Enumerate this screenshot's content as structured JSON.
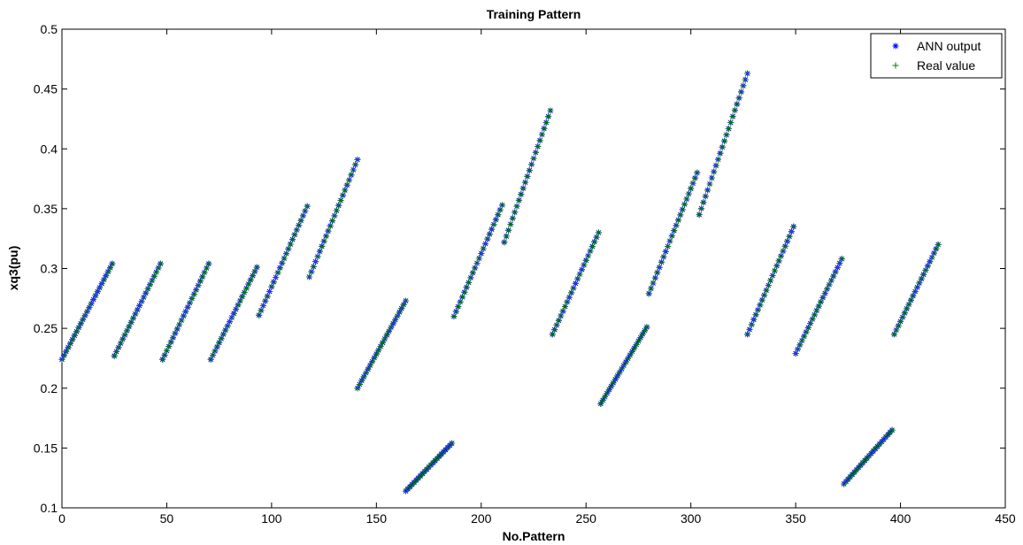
{
  "chart_data": {
    "type": "scatter",
    "title": "Training Pattern",
    "xlabel": "No.Pattern",
    "ylabel": "xq3(pu)",
    "xlim": [
      0,
      450
    ],
    "ylim": [
      0.1,
      0.5
    ],
    "xticks": [
      0,
      50,
      100,
      150,
      200,
      250,
      300,
      350,
      400,
      450
    ],
    "yticks": [
      0.1,
      0.15,
      0.2,
      0.25,
      0.3,
      0.35,
      0.4,
      0.45,
      0.5
    ],
    "xtick_labels": [
      "0",
      "50",
      "100",
      "150",
      "200",
      "250",
      "300",
      "350",
      "400",
      "450"
    ],
    "ytick_labels": [
      "0.1",
      "0.15",
      "0.2",
      "0.25",
      "0.3",
      "0.35",
      "0.4",
      "0.45",
      "0.5"
    ],
    "grid": false,
    "legend_position": "top-right",
    "segments": [
      {
        "x_start": 0,
        "x_end": 24,
        "y_start": 0.224,
        "y_end": 0.304
      },
      {
        "x_start": 25,
        "x_end": 47,
        "y_start": 0.227,
        "y_end": 0.304
      },
      {
        "x_start": 48,
        "x_end": 70,
        "y_start": 0.224,
        "y_end": 0.304
      },
      {
        "x_start": 71,
        "x_end": 93,
        "y_start": 0.224,
        "y_end": 0.301
      },
      {
        "x_start": 94,
        "x_end": 117,
        "y_start": 0.261,
        "y_end": 0.352
      },
      {
        "x_start": 118,
        "x_end": 141,
        "y_start": 0.293,
        "y_end": 0.391
      },
      {
        "x_start": 141,
        "x_end": 164,
        "y_start": 0.2,
        "y_end": 0.273
      },
      {
        "x_start": 164,
        "x_end": 186,
        "y_start": 0.114,
        "y_end": 0.154
      },
      {
        "x_start": 187,
        "x_end": 210,
        "y_start": 0.26,
        "y_end": 0.353
      },
      {
        "x_start": 211,
        "x_end": 233,
        "y_start": 0.322,
        "y_end": 0.432
      },
      {
        "x_start": 234,
        "x_end": 256,
        "y_start": 0.245,
        "y_end": 0.33
      },
      {
        "x_start": 257,
        "x_end": 279,
        "y_start": 0.187,
        "y_end": 0.251
      },
      {
        "x_start": 280,
        "x_end": 303,
        "y_start": 0.279,
        "y_end": 0.38
      },
      {
        "x_start": 304,
        "x_end": 327,
        "y_start": 0.345,
        "y_end": 0.463
      },
      {
        "x_start": 327,
        "x_end": 349,
        "y_start": 0.245,
        "y_end": 0.335
      },
      {
        "x_start": 350,
        "x_end": 372,
        "y_start": 0.229,
        "y_end": 0.308
      },
      {
        "x_start": 373,
        "x_end": 396,
        "y_start": 0.12,
        "y_end": 0.165
      },
      {
        "x_start": 397,
        "x_end": 418,
        "y_start": 0.245,
        "y_end": 0.32
      }
    ],
    "series": [
      {
        "name": "ANN output",
        "marker": "*",
        "color": "#0000ff"
      },
      {
        "name": "Real value",
        "marker": "+",
        "color": "#008000"
      }
    ]
  }
}
